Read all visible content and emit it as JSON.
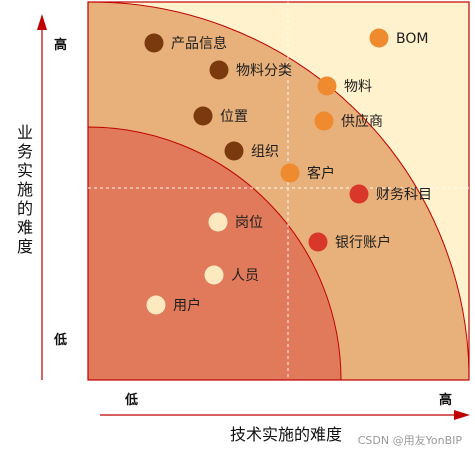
{
  "colors": {
    "outer_zone": "#fff2cc",
    "middle_zone": "#e8b07a",
    "inner_zone": "#e07a5a",
    "border": "#c00000",
    "arrow": "#c00000",
    "dark_brown": "#7b3a0e",
    "orange": "#ef8a2e",
    "red": "#d9372a",
    "cream": "#fde9c0"
  },
  "y_axis": {
    "title": "业务实施的难度",
    "high": "高",
    "low": "低"
  },
  "x_axis": {
    "title": "技术实施的难度",
    "high": "高",
    "low": "低"
  },
  "items": [
    {
      "label": "产品信息",
      "color": "dark_brown"
    },
    {
      "label": "物料分类",
      "color": "dark_brown"
    },
    {
      "label": "位置",
      "color": "dark_brown"
    },
    {
      "label": "组织",
      "color": "dark_brown"
    },
    {
      "label": "BOM",
      "color": "orange"
    },
    {
      "label": "物料",
      "color": "orange"
    },
    {
      "label": "供应商",
      "color": "orange"
    },
    {
      "label": "客户",
      "color": "orange"
    },
    {
      "label": "财务科目",
      "color": "red"
    },
    {
      "label": "银行账户",
      "color": "red"
    },
    {
      "label": "岗位",
      "color": "cream"
    },
    {
      "label": "人员",
      "color": "cream"
    },
    {
      "label": "用户",
      "color": "cream"
    }
  ],
  "watermark": "CSDN @用友YonBIP"
}
